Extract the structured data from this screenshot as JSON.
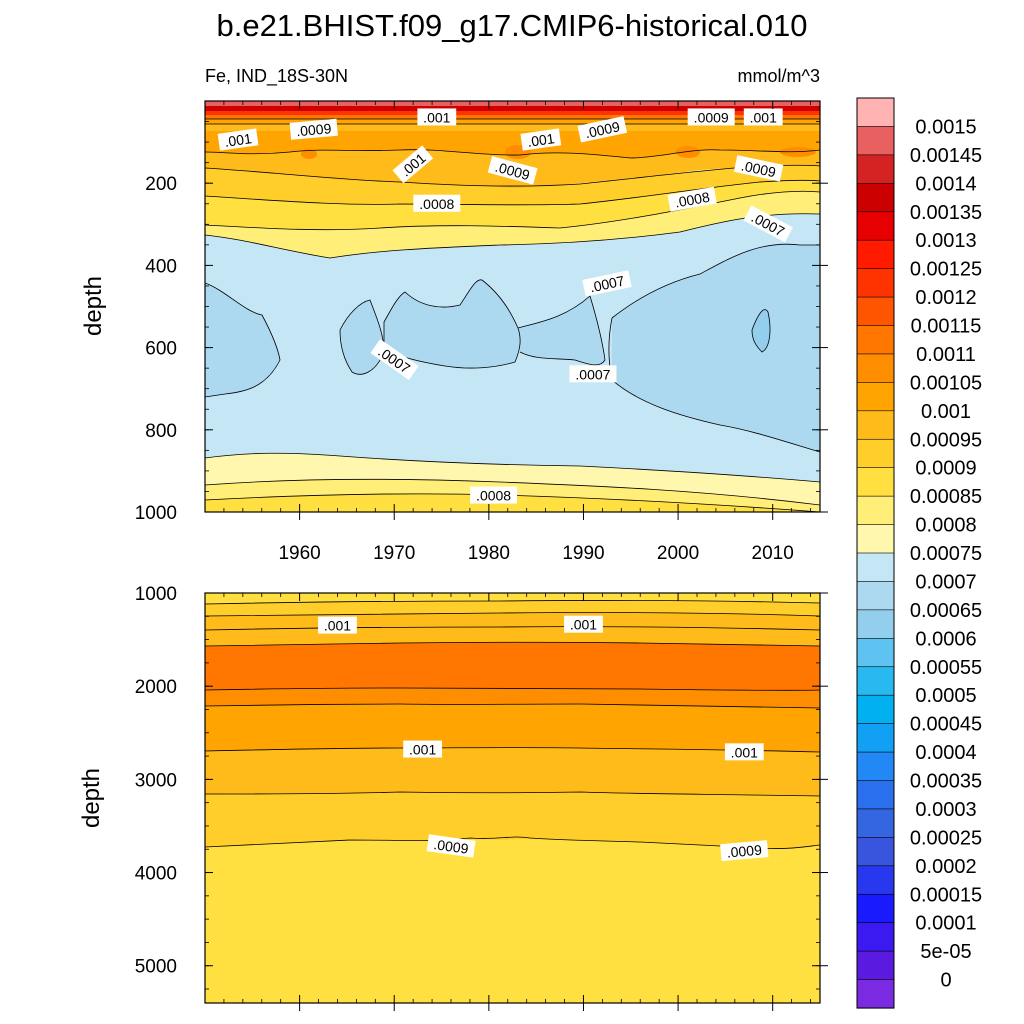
{
  "chart_data": {
    "type": "contour",
    "title": "b.e21.BHIST.f09_g17.CMIP6-historical.010",
    "left_string": "Fe, IND_18S-30N",
    "right_string": "mmol/m^3",
    "xlim": [
      1950,
      2015
    ],
    "x_ticks": [
      "1960",
      "1970",
      "1980",
      "1990",
      "2000",
      "2010"
    ],
    "colorbar": {
      "orientation": "vertical",
      "levels": [
        "0.0015",
        "0.00145",
        "0.0014",
        "0.00135",
        "0.0013",
        "0.00125",
        "0.0012",
        "0.00115",
        "0.0011",
        "0.00105",
        "0.001",
        "0.00095",
        "0.0009",
        "0.00085",
        "0.0008",
        "0.00075",
        "0.0007",
        "0.00065",
        "0.0006",
        "0.00055",
        "0.0005",
        "0.00045",
        "0.0004",
        "0.00035",
        "0.0003",
        "0.00025",
        "0.0002",
        "0.00015",
        "0.0001",
        "5e-05",
        "0"
      ],
      "colors": [
        "#ffb3b3",
        "#e86060",
        "#d52222",
        "#cc0000",
        "#e60000",
        "#ff1a00",
        "#ff3300",
        "#ff5500",
        "#ff7700",
        "#ff8d00",
        "#ffa400",
        "#ffbb1a",
        "#ffce2a",
        "#ffe040",
        "#ffee77",
        "#fff7ad",
        "#c5e6f5",
        "#acd9f0",
        "#94ceed",
        "#5ec3f0",
        "#28b9f0",
        "#00b0f0",
        "#12a0f5",
        "#2288f5",
        "#2a70ee",
        "#3366e0",
        "#3a55dd",
        "#2838ee",
        "#1a1aff",
        "#3a1af0",
        "#5a1ae0",
        "#7a2ae0"
      ]
    },
    "panels": [
      {
        "name": "upper",
        "ylabel": "depth",
        "ylim": [
          0,
          1000
        ],
        "y_ticks": [
          "200",
          "400",
          "600",
          "800",
          "1000"
        ],
        "contour_labels": [
          {
            "text": ".001",
            "x": 1953.5,
            "y": 95,
            "angle": -8
          },
          {
            "text": ".0009",
            "x": 1961.5,
            "y": 70,
            "angle": -5
          },
          {
            "text": ".001",
            "x": 1974.5,
            "y": 40,
            "angle": 0
          },
          {
            "text": ".001",
            "x": 1972,
            "y": 155,
            "angle": -40
          },
          {
            "text": ".001",
            "x": 1985.5,
            "y": 95,
            "angle": -8
          },
          {
            "text": ".0009",
            "x": 1992,
            "y": 70,
            "angle": -12
          },
          {
            "text": ".0009",
            "x": 2003.5,
            "y": 40,
            "angle": 0
          },
          {
            "text": ".001",
            "x": 2009,
            "y": 40,
            "angle": 0
          },
          {
            "text": ".0009",
            "x": 2008.5,
            "y": 165,
            "angle": 12
          },
          {
            "text": ".0009",
            "x": 1982.5,
            "y": 170,
            "angle": 15
          },
          {
            "text": ".0008",
            "x": 1974.5,
            "y": 250,
            "angle": 0
          },
          {
            "text": ".0008",
            "x": 2001.5,
            "y": 240,
            "angle": -10
          },
          {
            "text": ".0007",
            "x": 2009.5,
            "y": 300,
            "angle": 28
          },
          {
            "text": ".0007",
            "x": 1992.5,
            "y": 445,
            "angle": -12
          },
          {
            "text": ".0007",
            "x": 1970,
            "y": 630,
            "angle": 35
          },
          {
            "text": ".0007",
            "x": 1991,
            "y": 665,
            "angle": 0
          },
          {
            "text": ".0008",
            "x": 1980.5,
            "y": 960,
            "angle": 0
          }
        ]
      },
      {
        "name": "lower",
        "ylabel": "depth",
        "ylim": [
          1000,
          5400
        ],
        "y_ticks": [
          "1000",
          "2000",
          "3000",
          "4000",
          "5000"
        ],
        "contour_labels": [
          {
            "text": ".001",
            "x": 1964,
            "y": 1350,
            "angle": 0
          },
          {
            "text": ".001",
            "x": 1990,
            "y": 1340,
            "angle": 0
          },
          {
            "text": ".001",
            "x": 1973,
            "y": 2680,
            "angle": 0
          },
          {
            "text": ".001",
            "x": 2007,
            "y": 2710,
            "angle": 0
          },
          {
            "text": ".0009",
            "x": 1976,
            "y": 3720,
            "angle": 8
          },
          {
            "text": ".0009",
            "x": 2007,
            "y": 3770,
            "angle": -5
          }
        ]
      }
    ]
  }
}
